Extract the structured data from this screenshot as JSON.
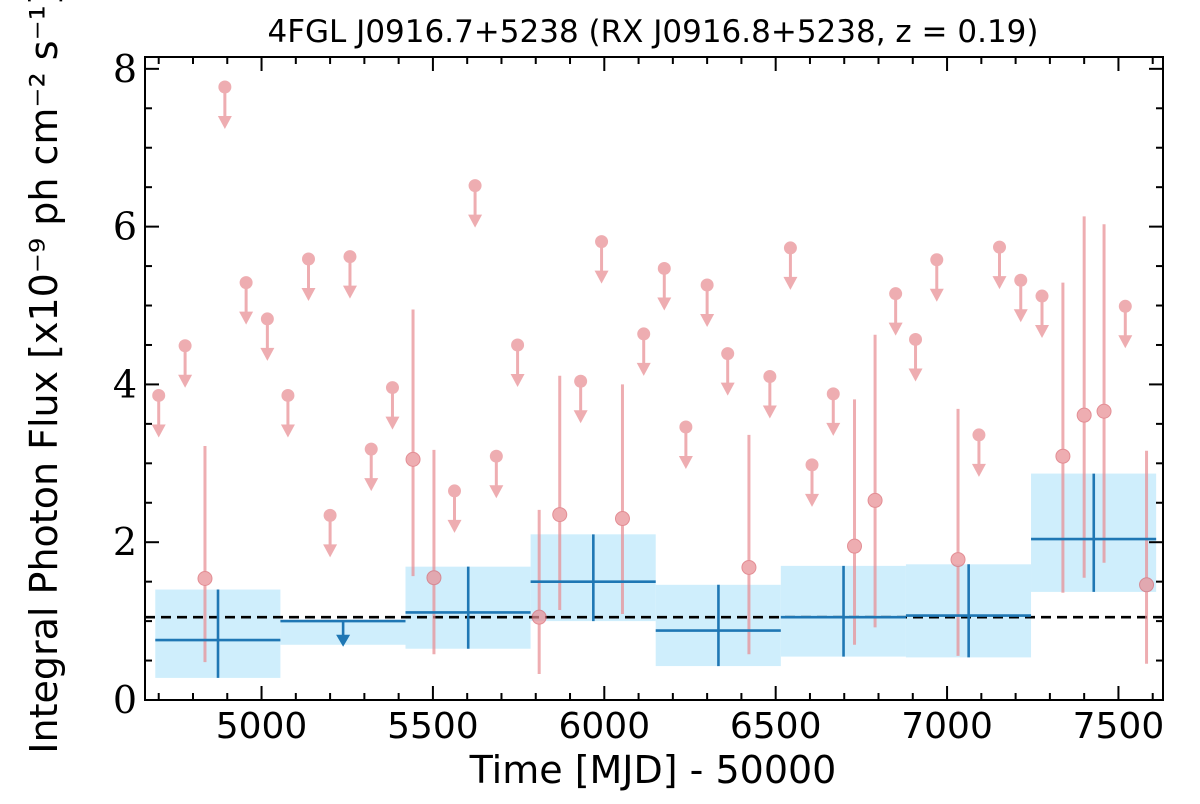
{
  "chart_data": {
    "type": "scatter",
    "title": "4FGL J0916.7+5238 (RX J0916.8+5238, z = 0.19)",
    "xlabel": "Time [MJD] - 50000",
    "ylabel": "Integral Photon Flux [x10⁻⁹ ph cm⁻² s⁻¹]",
    "xlim": [
      4660,
      7630
    ],
    "ylim": [
      0,
      8.15
    ],
    "x_ticks": [
      "5000",
      "5500",
      "6000",
      "6500",
      "7000",
      "7500"
    ],
    "y_ticks": [
      "0",
      "2",
      "4",
      "6",
      "8"
    ],
    "reference_level": 1.05,
    "colors": {
      "short_bins": "#e88e94",
      "long_bins": "#1f77b4",
      "band": "#cfeefc",
      "reference": "#000000"
    },
    "series": [
      {
        "marker": "upper-limit",
        "points": [
          {
            "x": 4700,
            "y": 3.86
          },
          {
            "x": 4777,
            "y": 4.49
          },
          {
            "x": 4893,
            "y": 7.77
          },
          {
            "x": 4955,
            "y": 5.29
          },
          {
            "x": 5017,
            "y": 4.83
          },
          {
            "x": 5077,
            "y": 3.86
          },
          {
            "x": 5137,
            "y": 5.59
          },
          {
            "x": 5200,
            "y": 2.34
          },
          {
            "x": 5258,
            "y": 5.62
          },
          {
            "x": 5320,
            "y": 3.18
          },
          {
            "x": 5382,
            "y": 3.96
          },
          {
            "x": 5563,
            "y": 2.65
          },
          {
            "x": 5623,
            "y": 6.52
          },
          {
            "x": 5685,
            "y": 3.09
          },
          {
            "x": 5747,
            "y": 4.5
          },
          {
            "x": 5931,
            "y": 4.04
          },
          {
            "x": 5992,
            "y": 5.81
          },
          {
            "x": 6115,
            "y": 4.64
          },
          {
            "x": 6175,
            "y": 5.47
          },
          {
            "x": 6238,
            "y": 3.46
          },
          {
            "x": 6300,
            "y": 5.26
          },
          {
            "x": 6360,
            "y": 4.39
          },
          {
            "x": 6483,
            "y": 4.1
          },
          {
            "x": 6543,
            "y": 5.73
          },
          {
            "x": 6606,
            "y": 2.98
          },
          {
            "x": 6668,
            "y": 3.88
          },
          {
            "x": 6850,
            "y": 5.15
          },
          {
            "x": 6908,
            "y": 4.57
          },
          {
            "x": 6970,
            "y": 5.58
          },
          {
            "x": 7093,
            "y": 3.36
          },
          {
            "x": 7153,
            "y": 5.74
          },
          {
            "x": 7215,
            "y": 5.32
          },
          {
            "x": 7277,
            "y": 5.12
          },
          {
            "x": 7520,
            "y": 4.99
          }
        ]
      },
      {
        "marker": "detection",
        "points": [
          {
            "x": 4835,
            "y": 1.54,
            "lo": 0.48,
            "hi": 3.22
          },
          {
            "x": 5442,
            "y": 3.05,
            "lo": 1.57,
            "hi": 4.95
          },
          {
            "x": 5503,
            "y": 1.55,
            "lo": 0.58,
            "hi": 3.17
          },
          {
            "x": 5810,
            "y": 1.05,
            "lo": 0.33,
            "hi": 2.41
          },
          {
            "x": 5870,
            "y": 2.35,
            "lo": 1.14,
            "hi": 4.11
          },
          {
            "x": 6053,
            "y": 2.3,
            "lo": 1.09,
            "hi": 4.0
          },
          {
            "x": 6422,
            "y": 1.68,
            "lo": 0.58,
            "hi": 3.36
          },
          {
            "x": 6730,
            "y": 1.95,
            "lo": 0.7,
            "hi": 3.81
          },
          {
            "x": 6790,
            "y": 2.53,
            "lo": 0.92,
            "hi": 4.63
          },
          {
            "x": 7032,
            "y": 1.78,
            "lo": 0.56,
            "hi": 3.69
          },
          {
            "x": 7338,
            "y": 3.09,
            "lo": 1.36,
            "hi": 5.29
          },
          {
            "x": 7400,
            "y": 3.61,
            "lo": 1.55,
            "hi": 6.13
          },
          {
            "x": 7458,
            "y": 3.66,
            "lo": 1.74,
            "hi": 6.03
          },
          {
            "x": 7582,
            "y": 1.46,
            "lo": 0.46,
            "hi": 3.16
          }
        ]
      },
      {
        "marker": "long-bin",
        "points": [
          {
            "x0": 4690,
            "x1": 5055,
            "y": 0.76,
            "lo": 0.28,
            "hi": 1.4,
            "xc": 4873,
            "upper_limit": false
          },
          {
            "x0": 5055,
            "x1": 5420,
            "y": 1.0,
            "lo": 0.7,
            "hi": 1.0,
            "xc": 5238,
            "upper_limit": true
          },
          {
            "x0": 5420,
            "x1": 5785,
            "y": 1.11,
            "lo": 0.65,
            "hi": 1.69,
            "xc": 5603,
            "upper_limit": false
          },
          {
            "x0": 5785,
            "x1": 6150,
            "y": 1.5,
            "lo": 1.0,
            "hi": 2.1,
            "xc": 5968,
            "upper_limit": false
          },
          {
            "x0": 6150,
            "x1": 6515,
            "y": 0.88,
            "lo": 0.43,
            "hi": 1.46,
            "xc": 6333,
            "upper_limit": false
          },
          {
            "x0": 6515,
            "x1": 6880,
            "y": 1.05,
            "lo": 0.55,
            "hi": 1.7,
            "xc": 6698,
            "upper_limit": false
          },
          {
            "x0": 6880,
            "x1": 7245,
            "y": 1.07,
            "lo": 0.54,
            "hi": 1.72,
            "xc": 7063,
            "upper_limit": false
          },
          {
            "x0": 7245,
            "x1": 7610,
            "y": 2.04,
            "lo": 1.37,
            "hi": 2.87,
            "xc": 7428,
            "upper_limit": false
          }
        ]
      }
    ]
  }
}
